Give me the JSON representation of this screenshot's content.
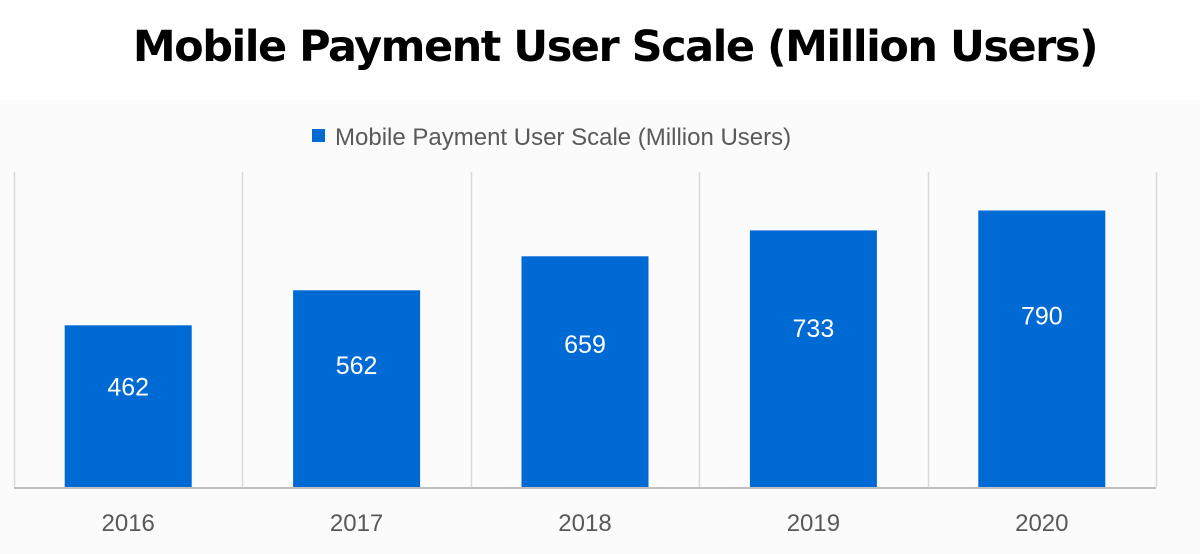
{
  "page": {
    "title": "Mobile Payment User Scale (Million Users)"
  },
  "colors": {
    "bar": "#006ad4",
    "grid": "#d9d9d9",
    "axis": "#bfbfbf",
    "text": "#595959",
    "value_text": "#ffffff",
    "background": "#fbfbfb"
  },
  "chart_data": {
    "type": "bar",
    "categories": [
      "2016",
      "2017",
      "2018",
      "2019",
      "2020"
    ],
    "series": [
      {
        "name": "Mobile Payment User Scale (Million Users)",
        "values": [
          462,
          562,
          659,
          733,
          790
        ]
      }
    ],
    "data_labels": [
      "462",
      "562",
      "659",
      "733",
      "790"
    ],
    "ylim": [
      0,
      900
    ],
    "grid": "vertical-category-separators",
    "legend": "top-center",
    "value_axis_visible": false
  }
}
